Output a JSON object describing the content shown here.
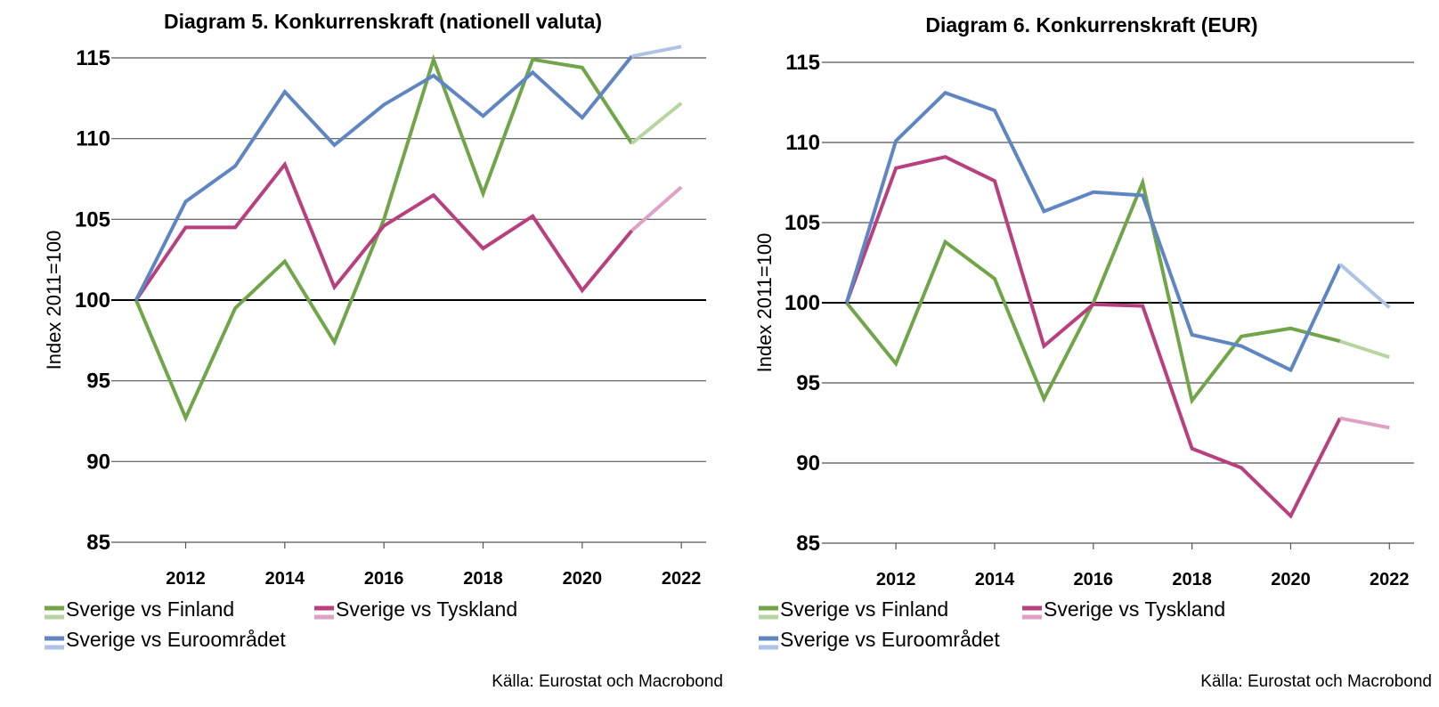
{
  "chart_data": [
    {
      "type": "line",
      "title": "Diagram 5. Konkurrenskraft (nationell valuta)",
      "ylabel": "Index 2011=100",
      "xlabel": "",
      "x": [
        2011.5,
        2012.5,
        2013.5,
        2014.5,
        2015.5,
        2016.5,
        2017.5,
        2018.5,
        2019.5,
        2020.5,
        2021.5,
        2022.5
      ],
      "x_ticks": [
        "2012",
        "2014",
        "2016",
        "2018",
        "2020",
        "2022"
      ],
      "y_ticks": [
        "85",
        "90",
        "95",
        "100",
        "105",
        "110",
        "115"
      ],
      "ylim": [
        85,
        116.5
      ],
      "xlim": [
        2011,
        2023
      ],
      "grid": "horizontal",
      "reference_line": 100,
      "forecast_from_x": 2021.5,
      "legend_position": "bottom",
      "series": [
        {
          "name": "Sverige vs Finland",
          "color": "#70a54a",
          "forecast_color": "#b7d5a0",
          "values": [
            100,
            92.7,
            99.5,
            102.4,
            97.4,
            105.0,
            114.9,
            106.6,
            114.9,
            114.4,
            109.7,
            112.2
          ]
        },
        {
          "name": "Sverige vs Tyskland",
          "color": "#b8407e",
          "forecast_color": "#dfa2c5",
          "values": [
            100,
            104.5,
            104.5,
            108.4,
            100.8,
            104.6,
            106.5,
            103.2,
            105.2,
            100.6,
            104.3,
            107.0
          ]
        },
        {
          "name": "Sverige vs Euroområdet",
          "color": "#5f86c2",
          "forecast_color": "#aec4e6",
          "values": [
            100,
            106.1,
            108.3,
            112.9,
            109.6,
            112.1,
            113.9,
            111.4,
            114.1,
            111.3,
            115.1,
            115.7
          ]
        }
      ],
      "source": "Källa: Eurostat och Macrobond"
    },
    {
      "type": "line",
      "title": "Diagram 6. Konkurrenskraft (EUR)",
      "ylabel": "Index 2011=100",
      "xlabel": "",
      "x": [
        2011.5,
        2012.5,
        2013.5,
        2014.5,
        2015.5,
        2016.5,
        2017.5,
        2018.5,
        2019.5,
        2020.5,
        2021.5,
        2022.5
      ],
      "x_ticks": [
        "2012",
        "2014",
        "2016",
        "2018",
        "2020",
        "2022"
      ],
      "y_ticks": [
        "85",
        "90",
        "95",
        "100",
        "105",
        "110",
        "115"
      ],
      "ylim": [
        85,
        116.5
      ],
      "xlim": [
        2011,
        2023
      ],
      "grid": "horizontal",
      "reference_line": 100,
      "forecast_from_x": 2021.5,
      "legend_position": "bottom",
      "series": [
        {
          "name": "Sverige vs Finland",
          "color": "#70a54a",
          "forecast_color": "#b7d5a0",
          "values": [
            100,
            96.2,
            103.8,
            101.5,
            94.0,
            100.0,
            107.5,
            93.9,
            97.9,
            98.4,
            97.6,
            96.6
          ]
        },
        {
          "name": "Sverige vs Tyskland",
          "color": "#b8407e",
          "forecast_color": "#dfa2c5",
          "values": [
            100,
            108.4,
            109.1,
            107.6,
            97.3,
            99.9,
            99.8,
            90.9,
            89.7,
            86.7,
            92.8,
            92.2
          ]
        },
        {
          "name": "Sverige vs Euroområdet",
          "color": "#5f86c2",
          "forecast_color": "#aec4e6",
          "values": [
            100,
            110.1,
            113.1,
            112.0,
            105.7,
            106.9,
            106.7,
            98.0,
            97.3,
            95.8,
            102.4,
            99.7
          ]
        }
      ],
      "source": "Källa: Eurostat och Macrobond"
    }
  ]
}
